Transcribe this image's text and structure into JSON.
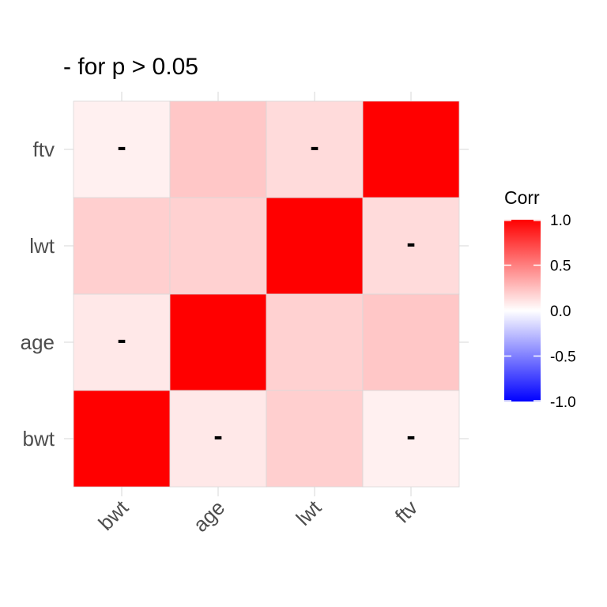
{
  "chart_data": {
    "type": "heatmap",
    "title": "- for p > 0.05",
    "x_categories": [
      "bwt",
      "age",
      "lwt",
      "ftv"
    ],
    "y_categories": [
      "bwt",
      "age",
      "lwt",
      "ftv"
    ],
    "cells": [
      {
        "x": "bwt",
        "y": "bwt",
        "value": 1.0,
        "mark": ""
      },
      {
        "x": "age",
        "y": "bwt",
        "value": 0.09,
        "mark": "-"
      },
      {
        "x": "lwt",
        "y": "bwt",
        "value": 0.19,
        "mark": ""
      },
      {
        "x": "ftv",
        "y": "bwt",
        "value": 0.06,
        "mark": "-"
      },
      {
        "x": "bwt",
        "y": "age",
        "value": 0.09,
        "mark": "-"
      },
      {
        "x": "age",
        "y": "age",
        "value": 1.0,
        "mark": ""
      },
      {
        "x": "lwt",
        "y": "age",
        "value": 0.18,
        "mark": ""
      },
      {
        "x": "ftv",
        "y": "age",
        "value": 0.22,
        "mark": ""
      },
      {
        "x": "bwt",
        "y": "lwt",
        "value": 0.19,
        "mark": ""
      },
      {
        "x": "age",
        "y": "lwt",
        "value": 0.18,
        "mark": ""
      },
      {
        "x": "lwt",
        "y": "lwt",
        "value": 1.0,
        "mark": ""
      },
      {
        "x": "ftv",
        "y": "lwt",
        "value": 0.14,
        "mark": "-"
      },
      {
        "x": "bwt",
        "y": "ftv",
        "value": 0.06,
        "mark": "-"
      },
      {
        "x": "age",
        "y": "ftv",
        "value": 0.22,
        "mark": ""
      },
      {
        "x": "lwt",
        "y": "ftv",
        "value": 0.14,
        "mark": "-"
      },
      {
        "x": "ftv",
        "y": "ftv",
        "value": 1.0,
        "mark": ""
      }
    ],
    "legend": {
      "title": "Corr",
      "range": [
        -1.0,
        1.0
      ],
      "ticks": [
        1.0,
        0.5,
        0.0,
        -0.5,
        -1.0
      ],
      "tick_labels": [
        "1.0",
        "0.5",
        "0.0",
        "-0.5",
        "-1.0"
      ],
      "low_color": "#0000ff",
      "mid_color": "#ffffff",
      "high_color": "#ff0000"
    },
    "grid": true
  }
}
